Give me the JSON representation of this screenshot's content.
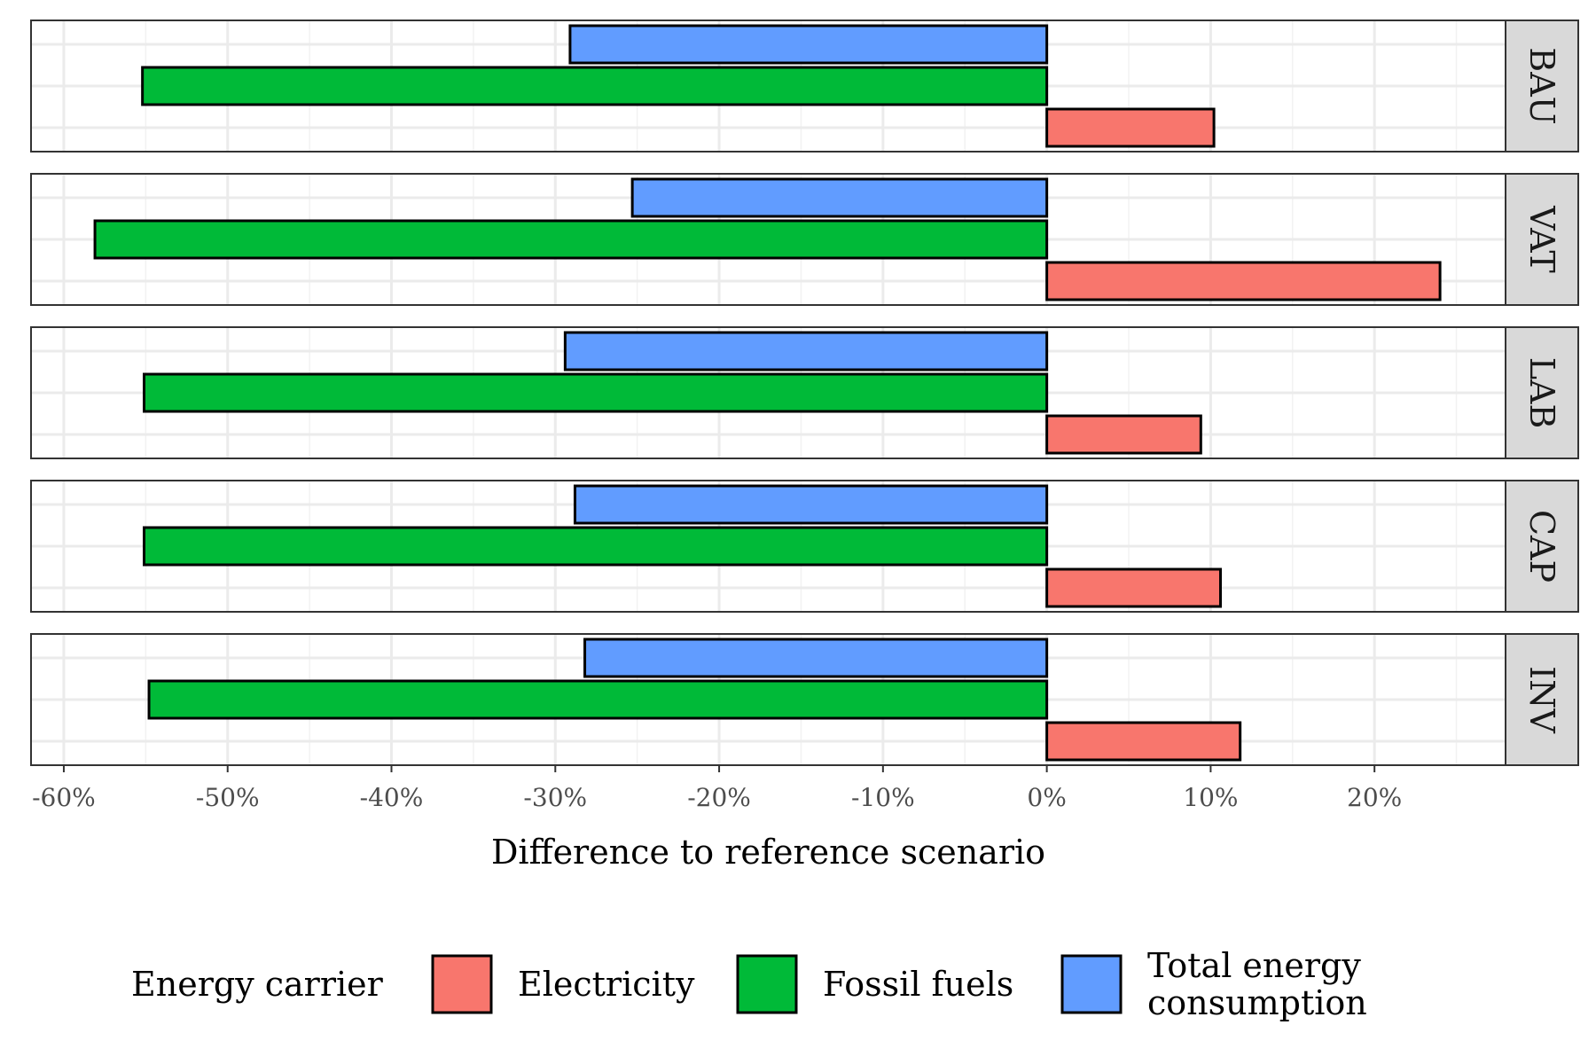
{
  "chart_data": {
    "type": "bar",
    "orientation": "horizontal",
    "facets": [
      "BAU",
      "VAT",
      "LAB",
      "CAP",
      "INV"
    ],
    "categories": [
      "Total energy consumption",
      "Fossil fuels",
      "Electricity"
    ],
    "series": [
      {
        "facet": "BAU",
        "values": [
          -29.1,
          -55.2,
          10.2
        ]
      },
      {
        "facet": "VAT",
        "values": [
          -25.3,
          -58.1,
          24.0
        ]
      },
      {
        "facet": "LAB",
        "values": [
          -29.4,
          -55.1,
          9.4
        ]
      },
      {
        "facet": "CAP",
        "values": [
          -28.8,
          -55.1,
          10.6
        ]
      },
      {
        "facet": "INV",
        "values": [
          -28.2,
          -54.8,
          11.8
        ]
      }
    ],
    "xlabel": "Difference to reference scenario",
    "ylabel": "",
    "xlim": [
      -62,
      28
    ],
    "xticks": [
      -60,
      -50,
      -40,
      -30,
      -20,
      -10,
      0,
      10,
      20
    ],
    "xtick_labels": [
      "-60%",
      "-50%",
      "-40%",
      "-30%",
      "-20%",
      "-10%",
      "0%",
      "10%",
      "20%"
    ],
    "grid": true,
    "legend": {
      "title": "Energy carrier",
      "position": "bottom",
      "entries": [
        {
          "label_lines": [
            "Electricity"
          ],
          "color": "#f8766d"
        },
        {
          "label_lines": [
            "Fossil fuels"
          ],
          "color": "#00ba38"
        },
        {
          "label_lines": [
            "Total energy",
            "consumption"
          ],
          "color": "#619cff"
        }
      ]
    },
    "colors": {
      "Total energy consumption": "#619cff",
      "Fossil fuels": "#00ba38",
      "Electricity": "#f8766d"
    }
  }
}
